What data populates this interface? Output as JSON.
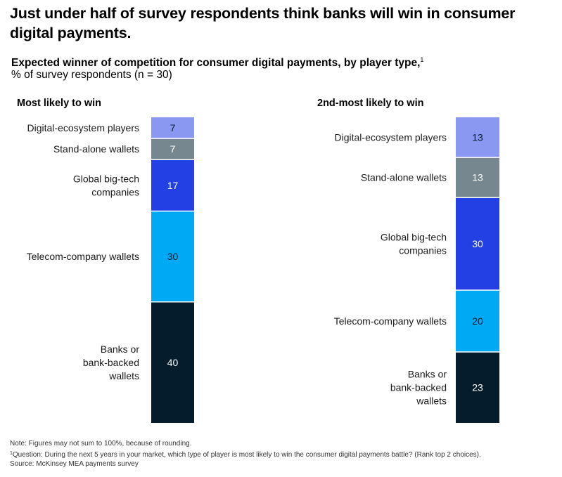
{
  "headline": "Just under half of survey respondents think banks will win in consumer digital payments.",
  "subtitle": "Expected winner of competition for consumer digital payments, by player type,",
  "subtitle_footnote_marker": "1",
  "unit_line": "% of survey respondents (n = 30)",
  "colors": {
    "Digital-ecosystem players": "#8b98f2",
    "Stand-alone wallets": "#77878f",
    "Global big-tech companies": "#2240e4",
    "Telecom-company wallets": "#00a9f4",
    "Banks or bank-backed wallets": "#051c2c"
  },
  "chart_data": [
    {
      "type": "bar",
      "stacked": true,
      "title": "Most likely to win",
      "categories": [
        "Digital-ecosystem players",
        "Stand-alone wallets",
        "Global big-tech companies",
        "Telecom-company wallets",
        "Banks or bank-backed wallets"
      ],
      "category_label_lines": [
        [
          "Digital-ecosystem players"
        ],
        [
          "Stand-alone wallets"
        ],
        [
          "Global big-tech",
          "companies"
        ],
        [
          "Telecom-company wallets"
        ],
        [
          "Banks or",
          "bank-backed",
          "wallets"
        ]
      ],
      "values": [
        7,
        7,
        17,
        30,
        40
      ],
      "value_labels": [
        "7",
        "7",
        "17",
        "30",
        "40"
      ]
    },
    {
      "type": "bar",
      "stacked": true,
      "title": "2nd-most likely to win",
      "categories": [
        "Digital-ecosystem players",
        "Stand-alone wallets",
        "Global big-tech companies",
        "Telecom-company wallets",
        "Banks or bank-backed wallets"
      ],
      "category_label_lines": [
        [
          "Digital-ecosystem players"
        ],
        [
          "Stand-alone wallets"
        ],
        [
          "Global big-tech",
          "companies"
        ],
        [
          "Telecom-company wallets"
        ],
        [
          "Banks or",
          "bank-backed",
          "wallets"
        ]
      ],
      "values": [
        13,
        13,
        30,
        20,
        23
      ],
      "value_labels": [
        "13",
        "13",
        "30",
        "20",
        "23"
      ]
    }
  ],
  "footnotes": {
    "note": "Note: Figures may not sum to 100%, because of rounding.",
    "question_marker": "1",
    "question": "Question: During the next 5 years in your market, which type of player is most likely to win the consumer digital payments battle? (Rank top 2 choices).",
    "source": "Source: McKinsey MEA payments survey"
  }
}
